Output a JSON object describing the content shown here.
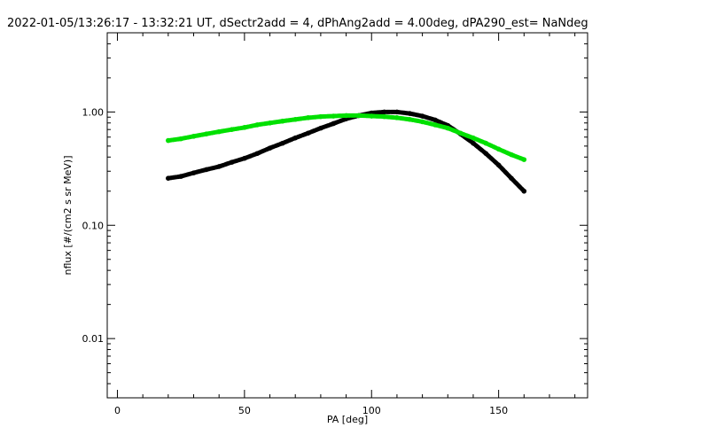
{
  "chart_data": {
    "type": "scatter",
    "title": "2022-01-05/13:26:17 - 13:32:21 UT, dSectr2add = 4, dPhAng2add = 4.00deg, dPA290_est=   NaNdeg",
    "xlabel": "PA [deg]",
    "ylabel": "nflux [#/(cm2 s sr MeV)]",
    "xlim": [
      -4,
      185
    ],
    "ylim": [
      0.003,
      5
    ],
    "yscale": "log",
    "grid": false,
    "xticks": [
      {
        "value": 0,
        "label": "0"
      },
      {
        "value": 50,
        "label": "50"
      },
      {
        "value": 100,
        "label": "100"
      },
      {
        "value": 150,
        "label": "150"
      }
    ],
    "yticks": [
      {
        "value": 0.01,
        "label": "0.01"
      },
      {
        "value": 0.1,
        "label": "0.10"
      },
      {
        "value": 1,
        "label": "1.00"
      }
    ],
    "series": [
      {
        "color": "#000000",
        "x": [
          20,
          25,
          30,
          35,
          40,
          45,
          50,
          55,
          60,
          65,
          70,
          75,
          80,
          85,
          90,
          95,
          100,
          105,
          110,
          115,
          120,
          125,
          130,
          135,
          140,
          145,
          150,
          155,
          160
        ],
        "y": [
          0.26,
          0.27,
          0.29,
          0.31,
          0.33,
          0.36,
          0.39,
          0.43,
          0.48,
          0.53,
          0.59,
          0.65,
          0.72,
          0.79,
          0.87,
          0.93,
          0.98,
          1.0,
          1.0,
          0.97,
          0.92,
          0.85,
          0.76,
          0.64,
          0.53,
          0.43,
          0.34,
          0.26,
          0.2
        ]
      },
      {
        "color": "#00e000",
        "x": [
          20,
          25,
          30,
          35,
          40,
          45,
          50,
          55,
          60,
          65,
          70,
          75,
          80,
          85,
          90,
          95,
          100,
          105,
          110,
          115,
          120,
          125,
          130,
          135,
          140,
          145,
          150,
          155,
          160
        ],
        "y": [
          0.56,
          0.58,
          0.61,
          0.64,
          0.67,
          0.7,
          0.73,
          0.77,
          0.8,
          0.83,
          0.86,
          0.89,
          0.91,
          0.92,
          0.93,
          0.93,
          0.92,
          0.91,
          0.89,
          0.86,
          0.82,
          0.77,
          0.72,
          0.65,
          0.59,
          0.53,
          0.47,
          0.42,
          0.38
        ]
      }
    ]
  }
}
